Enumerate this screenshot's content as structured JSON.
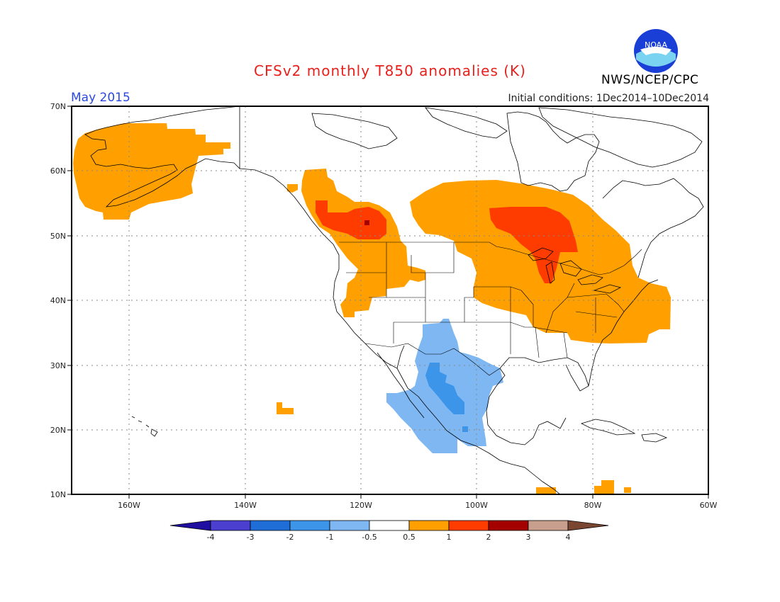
{
  "header": {
    "title": "CFSv2 monthly T850 anomalies (K)",
    "month": "May 2015",
    "initial_conditions": "Initial conditions: 1Dec2014–10Dec2014",
    "agency": "NWS/NCEP/CPC",
    "logo_text": "NOAA"
  },
  "map": {
    "lat_labels": [
      "70N",
      "60N",
      "50N",
      "40N",
      "30N",
      "20N",
      "10N"
    ],
    "lon_labels": [
      "160W",
      "140W",
      "120W",
      "100W",
      "80W",
      "60W"
    ],
    "lat_range": [
      10,
      70
    ],
    "lon_range": [
      -170,
      -60
    ]
  },
  "colorbar": {
    "labels": [
      "-4",
      "-3",
      "-2",
      "-1",
      "-0.5",
      "0.5",
      "1",
      "2",
      "3",
      "4"
    ],
    "colors": [
      "#1e0fa0",
      "#4b3fd0",
      "#1f6ed8",
      "#3d95ea",
      "#7eb7f2",
      "#ffffff",
      "#ffa000",
      "#ff3c00",
      "#a50000",
      "#c89e8c",
      "#7a4632"
    ]
  },
  "colors": {
    "warm_05": "#ffa000",
    "warm_1": "#ff3c00",
    "warm_2": "#a50000",
    "cool_05": "#7eb7f2",
    "cool_1": "#3d95ea"
  }
}
